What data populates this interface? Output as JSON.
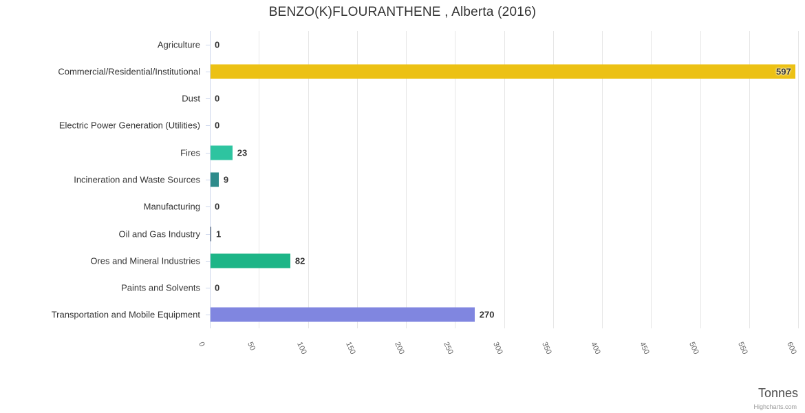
{
  "title": "BENZO(K)FLOURANTHENE , Alberta (2016)",
  "credits_label": "Highcharts.com",
  "colors": {
    "bar_gold": "#ecc114",
    "bar_teal_light": "#2ec4a0",
    "bar_teal_dark": "#2e8b8b",
    "bar_dark_slate": "#36455c",
    "bar_green": "#1db587",
    "bar_periwinkle": "#8086e0"
  },
  "chart_data": {
    "type": "bar",
    "orientation": "horizontal",
    "title": "BENZO(K)FLOURANTHENE , Alberta (2016)",
    "categories": [
      "Agriculture",
      "Commercial/Residential/Institutional",
      "Dust",
      "Electric Power Generation (Utilities)",
      "Fires",
      "Incineration and Waste Sources",
      "Manufacturing",
      "Oil and Gas Industry",
      "Ores and Mineral Industries",
      "Paints and Solvents",
      "Transportation and Mobile Equipment"
    ],
    "values": [
      0,
      597,
      0,
      0,
      23,
      9,
      0,
      1,
      82,
      0,
      270
    ],
    "bar_colors": [
      null,
      "#ecc114",
      null,
      null,
      "#2ec4a0",
      "#2e8b8b",
      null,
      "#36455c",
      "#1db587",
      null,
      "#8086e0"
    ],
    "xlabel": "Tonnes",
    "ylabel": "",
    "xlim": [
      0,
      600
    ],
    "xticks": [
      0,
      50,
      100,
      150,
      200,
      250,
      300,
      350,
      400,
      450,
      500,
      550,
      600
    ],
    "grid": true,
    "legend": false
  }
}
